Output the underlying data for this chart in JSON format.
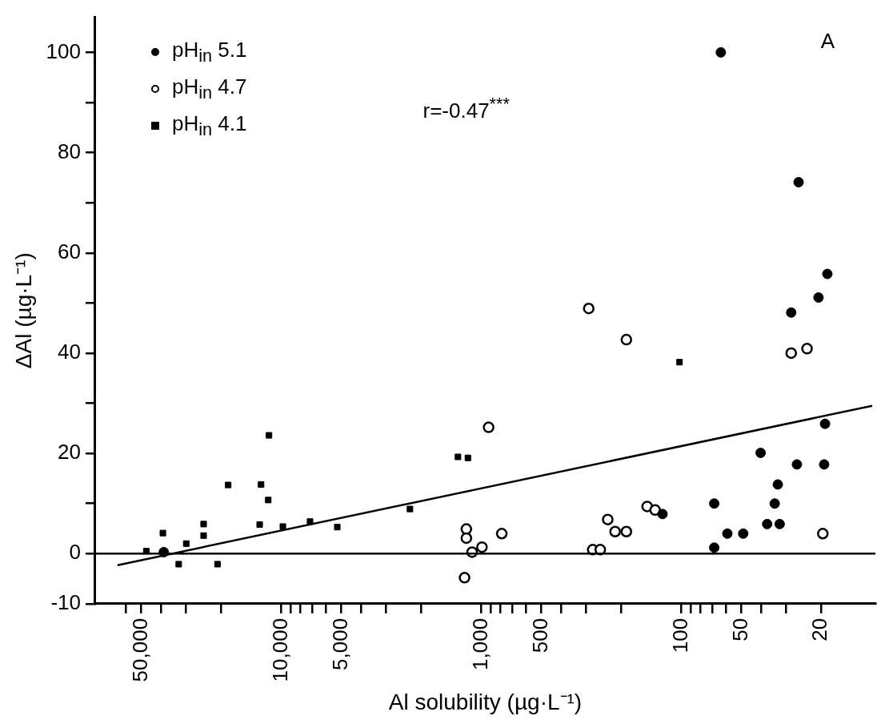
{
  "chart_data": {
    "type": "scatter",
    "xlabel": "Al solubility (µg·L⁻¹)",
    "ylabel": "ΔAl (µg·L⁻¹)",
    "annotations": [
      "r=-0.47$^{***}$",
      "A"
    ],
    "log": "x",
    "xlim": [
      85000,
      10.7
    ],
    "ylim": [
      -10,
      107
    ],
    "xticks": [
      {
        "value": 60000,
        "label": null
      },
      {
        "value": 50000,
        "label": "50,000"
      },
      {
        "value": 40000,
        "label": null
      },
      {
        "value": 30000,
        "label": null
      },
      {
        "value": 20000,
        "label": null
      },
      {
        "value": 10000,
        "label": "10,000"
      },
      {
        "value": 9000,
        "label": null
      },
      {
        "value": 8000,
        "label": null
      },
      {
        "value": 7000,
        "label": null
      },
      {
        "value": 6000,
        "label": null
      },
      {
        "value": 5000,
        "label": "5,000"
      },
      {
        "value": 4000,
        "label": null
      },
      {
        "value": 3000,
        "label": null
      },
      {
        "value": 2000,
        "label": null
      },
      {
        "value": 1000,
        "label": "1,000"
      },
      {
        "value": 900,
        "label": null
      },
      {
        "value": 800,
        "label": null
      },
      {
        "value": 700,
        "label": null
      },
      {
        "value": 600,
        "label": null
      },
      500,
      {
        "value": 400,
        "label": null
      },
      {
        "value": 300,
        "label": null
      },
      {
        "value": 200,
        "label": null
      },
      100,
      {
        "value": 90,
        "label": null
      },
      {
        "value": 80,
        "label": null
      },
      {
        "value": 70,
        "label": null
      },
      {
        "value": 60,
        "label": null
      },
      50,
      {
        "value": 40,
        "label": null
      },
      {
        "value": 30,
        "label": null
      },
      20
    ],
    "yticks": [
      -10,
      0,
      {
        "value": 10,
        "label": null
      },
      20,
      {
        "value": 30,
        "label": null
      },
      40,
      {
        "value": 50,
        "label": null
      },
      60,
      {
        "value": 70,
        "label": null
      },
      80,
      {
        "value": 90,
        "label": null
      },
      100
    ],
    "grid": false,
    "legend": "top left",
    "ref_lines": [
      {
        "axis": "y",
        "value": 0,
        "color": "#000000"
      }
    ],
    "series": [
      {
        "name": "pH$_{in}$ 5.1",
        "color": "#000000",
        "marker": "circle",
        "x": [
          63.4,
          25.9,
          18.6,
          20.6,
          28.2,
          19.1,
          40.1,
          26.4,
          19.3,
          32.9,
          68.4,
          34.1,
          37.2,
          32.2,
          58.8,
          49,
          68.4,
          124,
          38600
        ],
        "values": [
          100,
          74.1,
          55.8,
          51.1,
          48.1,
          25.9,
          20.1,
          17.8,
          17.8,
          13.8,
          10,
          10,
          5.9,
          5.9,
          4,
          4,
          1.2,
          7.9,
          0.3
        ]
      },
      {
        "name": "pH$_{in}$ 4.7",
        "color": "#000000",
        "marker": "circle",
        "x": [
          1186,
          1186,
          1211,
          1110,
          991,
          918,
          789,
          290,
          277,
          254,
          233,
          214,
          188,
          188,
          148,
          135,
          28.2,
          23.5,
          19.6
        ],
        "values": [
          4.9,
          3.1,
          -4.8,
          0.3,
          1.3,
          25.2,
          4,
          48.9,
          0.8,
          0.8,
          6.8,
          4.4,
          4.4,
          42.7,
          9.4,
          8.7,
          40,
          40.9,
          4
        ]
      },
      {
        "name": "pH$_{in}$ 4.1",
        "color": "#000000",
        "marker": "square",
        "x": [
          11500,
          18400,
          12600,
          11600,
          12800,
          9800,
          7170,
          5240,
          2270,
          1306,
          1165,
          39000,
          24400,
          24400,
          29800,
          32500,
          20800,
          47200,
          102
        ],
        "values": [
          23.6,
          13.7,
          13.8,
          10.7,
          5.8,
          5.4,
          6.4,
          5.3,
          8.9,
          19.3,
          19.1,
          4.1,
          5.9,
          3.6,
          2,
          -2.1,
          -2.1,
          0.5,
          38.2
        ]
      },
      {
        "type": "line",
        "color": "#000000",
        "x": [
          65700,
          11.1
        ],
        "values": [
          -2.3,
          29.5
        ]
      }
    ]
  }
}
